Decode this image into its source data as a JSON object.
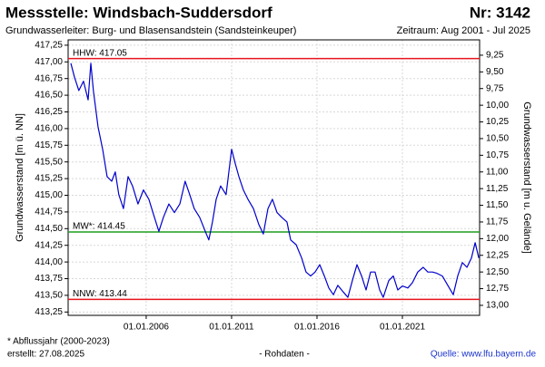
{
  "chart_data": {
    "type": "line",
    "title": "Messstelle: Windsbach-Suddersdorf",
    "station_number": "Nr: 3142",
    "subtitle": "Grundwasserleiter:  Burg- und Blasensandstein (Sandsteinkeuper)",
    "period": "Zeitraum: Aug 2001 - Jul 2025",
    "y_label": "Grundwasserstand [m ü. NN]",
    "y2_label": "Grundwasserstand [m u. Gelände]",
    "footnote": "* Abflussjahr (2000-2023)",
    "created": "erstellt:  27.08.2025",
    "data_note": "- Rohdaten -",
    "source": "Quelle: www.lfu.bayern.de",
    "grid": true,
    "xlim": [
      2001.43,
      2025.52
    ],
    "xticks": [
      {
        "value": 2006,
        "label": "01.01.2006"
      },
      {
        "value": 2011,
        "label": "01.01.2011"
      },
      {
        "value": 2016,
        "label": "01.01.2016"
      },
      {
        "value": 2021,
        "label": "01.01.2021"
      }
    ],
    "ylim": [
      413.2,
      417.33
    ],
    "yticks": [
      {
        "value": 413.25,
        "label": "413,25"
      },
      {
        "value": 413.5,
        "label": "413,50"
      },
      {
        "value": 413.75,
        "label": "413,75"
      },
      {
        "value": 414,
        "label": "414,00"
      },
      {
        "value": 414.25,
        "label": "414,25"
      },
      {
        "value": 414.5,
        "label": "414,50"
      },
      {
        "value": 414.75,
        "label": "414,75"
      },
      {
        "value": 415,
        "label": "415,00"
      },
      {
        "value": 415.25,
        "label": "415,25"
      },
      {
        "value": 415.5,
        "label": "415,50"
      },
      {
        "value": 415.75,
        "label": "415,75"
      },
      {
        "value": 416,
        "label": "416,00"
      },
      {
        "value": 416.25,
        "label": "416,25"
      },
      {
        "value": 416.5,
        "label": "416,50"
      },
      {
        "value": 416.75,
        "label": "416,75"
      },
      {
        "value": 417,
        "label": "417,00"
      },
      {
        "value": 417.25,
        "label": "417,25"
      }
    ],
    "y2lim": [
      13.15,
      9.02
    ],
    "y2ticks": [
      {
        "value": 13,
        "label": "13,00"
      },
      {
        "value": 12.75,
        "label": "12,75"
      },
      {
        "value": 12.5,
        "label": "12,50"
      },
      {
        "value": 12.25,
        "label": "12,25"
      },
      {
        "value": 12,
        "label": "12,00"
      },
      {
        "value": 11.75,
        "label": "11,75"
      },
      {
        "value": 11.5,
        "label": "11,50"
      },
      {
        "value": 11.25,
        "label": "11,25"
      },
      {
        "value": 11,
        "label": "11,00"
      },
      {
        "value": 10.75,
        "label": "10,75"
      },
      {
        "value": 10.5,
        "label": "10,50"
      },
      {
        "value": 10.25,
        "label": "10,25"
      },
      {
        "value": 10,
        "label": "10,00"
      },
      {
        "value": 9.75,
        "label": "9,75"
      },
      {
        "value": 9.5,
        "label": "9,50"
      },
      {
        "value": 9.25,
        "label": "9,25"
      }
    ],
    "reference_lines": [
      {
        "label": "HHW: 417.05",
        "value": 417.05,
        "color": "#e8141e"
      },
      {
        "label": "MW*: 414.45",
        "value": 414.45,
        "color": "#1e9e1e"
      },
      {
        "label": "NNW: 413.44",
        "value": 413.44,
        "color": "#e8141e"
      }
    ],
    "x": [
      2001.59,
      2001.8,
      2002.06,
      2002.33,
      2002.6,
      2002.76,
      2002.91,
      2003.18,
      2003.45,
      2003.71,
      2003.98,
      2004.19,
      2004.4,
      2004.67,
      2004.94,
      2005.2,
      2005.52,
      2005.84,
      2006.16,
      2006.48,
      2006.74,
      2007.01,
      2007.33,
      2007.65,
      2007.97,
      2008.28,
      2008.55,
      2008.81,
      2009.13,
      2009.46,
      2009.67,
      2009.88,
      2010.1,
      2010.36,
      2010.68,
      2011.0,
      2011.21,
      2011.43,
      2011.69,
      2011.96,
      2012.28,
      2012.6,
      2012.86,
      2013.13,
      2013.39,
      2013.66,
      2013.93,
      2014.24,
      2014.46,
      2014.78,
      2015.1,
      2015.36,
      2015.63,
      2015.89,
      2016.16,
      2016.43,
      2016.69,
      2016.96,
      2017.22,
      2017.54,
      2017.81,
      2018.07,
      2018.34,
      2018.61,
      2018.87,
      2019.14,
      2019.4,
      2019.67,
      2019.88,
      2020.2,
      2020.47,
      2020.73,
      2021.0,
      2021.32,
      2021.59,
      2021.9,
      2022.22,
      2022.49,
      2022.76,
      2023.02,
      2023.34,
      2023.66,
      2023.98,
      2024.24,
      2024.51,
      2024.78,
      2025.04,
      2025.26,
      2025.47
    ],
    "series": [
      {
        "name": "Grundwasserstand",
        "color": "#0000cc",
        "values": [
          416.98,
          416.77,
          416.57,
          416.71,
          416.43,
          416.98,
          416.57,
          416.03,
          415.69,
          415.28,
          415.21,
          415.35,
          415.01,
          414.8,
          415.28,
          415.14,
          414.87,
          415.08,
          414.94,
          414.67,
          414.46,
          414.67,
          414.87,
          414.74,
          414.87,
          415.21,
          415.01,
          414.8,
          414.67,
          414.46,
          414.33,
          414.6,
          414.94,
          415.14,
          415.01,
          415.69,
          415.48,
          415.28,
          415.08,
          414.94,
          414.8,
          414.56,
          414.42,
          414.8,
          414.94,
          414.74,
          414.67,
          414.6,
          414.33,
          414.26,
          414.06,
          413.85,
          413.79,
          413.85,
          413.96,
          413.79,
          413.61,
          413.51,
          413.65,
          413.55,
          413.47,
          413.72,
          413.96,
          413.79,
          413.58,
          413.85,
          413.85,
          413.58,
          413.47,
          413.72,
          413.79,
          413.58,
          413.64,
          413.61,
          413.69,
          413.85,
          413.92,
          413.85,
          413.85,
          413.83,
          413.79,
          413.65,
          413.51,
          413.79,
          413.99,
          413.92,
          414.06,
          414.29,
          414.06
        ]
      }
    ]
  }
}
